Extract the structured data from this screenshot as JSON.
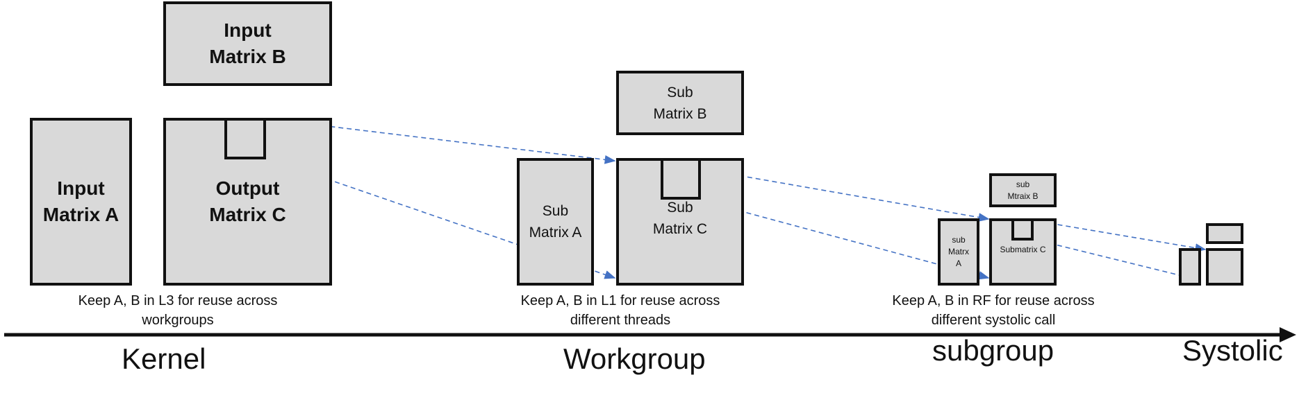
{
  "kernel": {
    "matrix_b": "Input\nMatrix B",
    "matrix_a": "Input\nMatrix A",
    "matrix_c": "Output\nMatrix C",
    "caption": "Keep A, B in L3 for reuse across\nworkgroups",
    "level_label": "Kernel"
  },
  "workgroup": {
    "matrix_b": "Sub\nMatrix B",
    "matrix_a": "Sub\nMatrix A",
    "matrix_c": "Sub\nMatrix C",
    "caption": "Keep A, B in L1 for reuse across\ndifferent threads",
    "level_label": "Workgroup"
  },
  "subgroup": {
    "matrix_b": "sub\nMtraix B",
    "matrix_a": "sub\nMatrx\nA",
    "matrix_c": "Submatrix C",
    "caption": "Keep A, B in RF for reuse across\ndifferent systolic call",
    "level_label": "subgroup"
  },
  "systolic": {
    "level_label": "Systolic"
  },
  "colors": {
    "box_fill": "#d9d9d9",
    "border": "#111111",
    "arrow": "#4472c4"
  }
}
